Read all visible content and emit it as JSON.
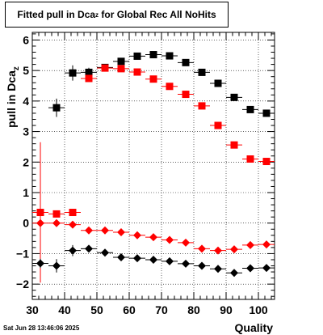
{
  "chart_data": {
    "type": "scatter",
    "title": "Fitted pull in Dca",
    "title_subscript": "z",
    "title_suffix": " for Global Rec All NoHits",
    "xlabel": "Quality",
    "ylabel": "pull in Dca",
    "ylabel_subscript": "z",
    "xlim": [
      30,
      105
    ],
    "ylim": [
      -2.5,
      6.25
    ],
    "x_ticks": [
      30,
      40,
      50,
      60,
      70,
      80,
      90,
      100
    ],
    "y_ticks": [
      -2,
      -1,
      0,
      1,
      2,
      3,
      4,
      5,
      6
    ],
    "grid": true,
    "timestamp": "Sat Jun 28 13:46:06 2025",
    "series": [
      {
        "marker": "square",
        "color": "#000000",
        "x": [
          37.5,
          42.5,
          47.5,
          52.5,
          57.5,
          62.5,
          67.5,
          72.5,
          77.5,
          82.5,
          87.5,
          92.5,
          97.5,
          102.5
        ],
        "y": [
          3.78,
          4.92,
          4.94,
          5.1,
          5.3,
          5.47,
          5.52,
          5.48,
          5.26,
          4.94,
          4.58,
          4.12,
          3.72,
          3.6
        ],
        "yerr": [
          0.3,
          0.25,
          0.15,
          0.1,
          0.08,
          0.08,
          0.07,
          0.07,
          0.07,
          0.07,
          0.07,
          0.07,
          0.07,
          0.07
        ]
      },
      {
        "marker": "square",
        "color": "#ff0000",
        "x": [
          32.5,
          37.5,
          42.5,
          47.5,
          52.5,
          57.5,
          62.5,
          67.5,
          72.5,
          77.5,
          82.5,
          87.5,
          92.5,
          97.5,
          102.5
        ],
        "y": [
          0.35,
          0.3,
          0.35,
          4.74,
          5.08,
          5.06,
          4.95,
          4.72,
          4.48,
          4.22,
          3.84,
          3.2,
          2.56,
          2.1,
          2.02
        ],
        "yerr": [
          2.3,
          0.1,
          0.08,
          0.1,
          0.08,
          0.07,
          0.07,
          0.07,
          0.07,
          0.07,
          0.07,
          0.07,
          0.07,
          0.07,
          0.07
        ]
      },
      {
        "marker": "diamond",
        "color": "#ff0000",
        "x": [
          32.5,
          37.5,
          42.5,
          47.5,
          52.5,
          57.5,
          62.5,
          67.5,
          72.5,
          77.5,
          82.5,
          87.5,
          92.5,
          97.5,
          102.5
        ],
        "y": [
          0.0,
          0.0,
          -0.05,
          -0.24,
          -0.24,
          -0.3,
          -0.4,
          -0.46,
          -0.55,
          -0.64,
          -0.84,
          -0.9,
          -0.86,
          -0.72,
          -0.7
        ],
        "yerr": [
          0.08,
          0.06,
          0.06,
          0.06,
          0.05,
          0.05,
          0.05,
          0.05,
          0.05,
          0.05,
          0.05,
          0.05,
          0.05,
          0.05,
          0.05
        ]
      },
      {
        "marker": "diamond",
        "color": "#000000",
        "x": [
          32.5,
          37.5,
          42.5,
          47.5,
          52.5,
          57.5,
          62.5,
          67.5,
          72.5,
          77.5,
          82.5,
          87.5,
          92.5,
          97.5,
          102.5
        ],
        "y": [
          -1.32,
          -1.4,
          -0.9,
          -0.84,
          -0.97,
          -1.12,
          -1.15,
          -1.2,
          -1.25,
          -1.33,
          -1.4,
          -1.5,
          -1.63,
          -1.48,
          -1.47
        ],
        "yerr": [
          0.15,
          0.22,
          0.18,
          0.08,
          0.06,
          0.05,
          0.05,
          0.05,
          0.05,
          0.05,
          0.05,
          0.05,
          0.05,
          0.05,
          0.05
        ]
      }
    ]
  }
}
